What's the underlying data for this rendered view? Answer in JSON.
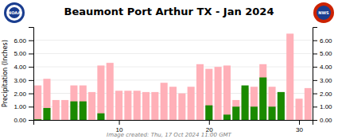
{
  "chart_data": {
    "type": "bar",
    "title": "Beaumont Port Arthur TX - Jan 2024",
    "y_label": "Precipitation (Inches)",
    "annotations": [
      "Image created: Thu, 17 Oct 2024 11:00 GMT",
      "NOAA",
      "NWS"
    ],
    "x": [
      1,
      2,
      3,
      4,
      5,
      6,
      7,
      8,
      9,
      10,
      11,
      12,
      13,
      14,
      15,
      16,
      17,
      18,
      19,
      20,
      21,
      22,
      23,
      24,
      25,
      26,
      27,
      28,
      29,
      30,
      31
    ],
    "series": [
      {
        "color": "#FFB0B8",
        "values": [
          2.6,
          3.1,
          1.5,
          1.5,
          2.6,
          2.6,
          2.1,
          4.1,
          4.3,
          2.2,
          2.2,
          2.2,
          2.1,
          2.1,
          2.8,
          2.5,
          2.0,
          2.5,
          4.2,
          3.85,
          4.0,
          4.1,
          1.5,
          2.4,
          2.5,
          4.2,
          2.5,
          2.1,
          6.5,
          1.6,
          2.4
        ]
      },
      {
        "color": "#1a8a00",
        "values": [
          0.05,
          0.9,
          0.0,
          0.0,
          1.4,
          1.4,
          0.0,
          0.5,
          0.0,
          0.0,
          0.0,
          0.0,
          0.0,
          0.0,
          0.0,
          0.0,
          0.0,
          0.0,
          0.0,
          1.1,
          0.0,
          0.4,
          1.0,
          2.6,
          1.0,
          3.2,
          1.0,
          2.1,
          0.0,
          0.0,
          0.0
        ]
      }
    ],
    "xlim": [
      0.5,
      31.5
    ],
    "xticks": [
      10,
      20,
      30
    ],
    "ylim": [
      0.0,
      7.0
    ],
    "yticks": [
      {
        "value": 0.0,
        "label": "0.00"
      },
      {
        "value": 1.0,
        "label": "1.00"
      },
      {
        "value": 2.0,
        "label": "2.00"
      },
      {
        "value": 3.0,
        "label": "3.00"
      },
      {
        "value": 4.0,
        "label": "4.00"
      },
      {
        "value": 5.0,
        "label": "5.00"
      },
      {
        "value": 6.0,
        "label": "6.00"
      }
    ],
    "y2lim": [
      0.0,
      7.0
    ],
    "y2ticks": [
      {
        "value": 0.0,
        "label": "0.00"
      },
      {
        "value": 1.0,
        "label": "1.00"
      },
      {
        "value": 2.0,
        "label": "2.00"
      },
      {
        "value": 3.0,
        "label": "3.00"
      },
      {
        "value": 4.0,
        "label": "4.00"
      },
      {
        "value": 5.0,
        "label": "5.00"
      },
      {
        "value": 6.0,
        "label": "6.00"
      }
    ],
    "grid": true
  }
}
